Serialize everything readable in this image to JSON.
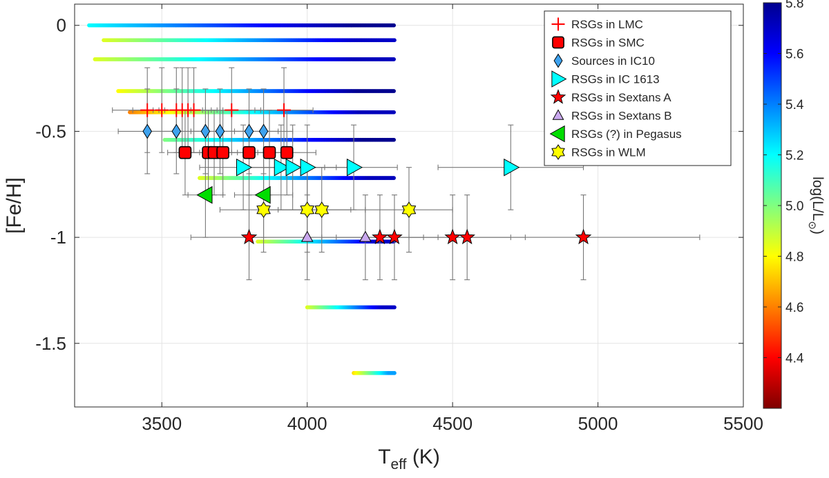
{
  "chart_data": {
    "type": "scatter",
    "xlabel": "T",
    "xlabel_sub": "eff",
    "xlabel_unit": " (K)",
    "ylabel": "[Fe/H]",
    "xlim": [
      3200,
      5500
    ],
    "ylim": [
      -1.8,
      0.1
    ],
    "xticks": [
      3500,
      4000,
      4500,
      5000,
      5500
    ],
    "yticks": [
      0,
      -0.5,
      -1,
      -1.5
    ],
    "ytick_labels": [
      "0",
      "-0.5",
      "-1",
      "-1.5"
    ],
    "grid": true,
    "legend_position": "top-right",
    "colorbar": {
      "label_prefix": "log(L/L",
      "label_sub": "⊙",
      "label_suffix": ")",
      "range": [
        4.2,
        5.8
      ],
      "ticks": [
        "4.4",
        "4.6",
        "4.8",
        "5.0",
        "5.2",
        "5.4",
        "5.6",
        "5.8"
      ],
      "tick_values": [
        4.4,
        4.6,
        4.8,
        5.0,
        5.2,
        5.4,
        5.6,
        5.8
      ],
      "colormap": [
        "#7f0000",
        "#ff0000",
        "#ff8000",
        "#ffff00",
        "#80ff80",
        "#00ffff",
        "#0080ff",
        "#0000ff",
        "#00008f"
      ]
    },
    "tracks": [
      {
        "feh": 0.0,
        "x0": 3250,
        "x1": 4300,
        "lmin": 5.2,
        "lmax": 5.8
      },
      {
        "feh": -0.07,
        "x0": 3300,
        "x1": 4300,
        "lmin": 4.85,
        "lmax": 5.7
      },
      {
        "feh": -0.16,
        "x0": 3270,
        "x1": 4300,
        "lmin": 4.85,
        "lmax": 5.72
      },
      {
        "feh": -0.31,
        "x0": 3350,
        "x1": 4300,
        "lmin": 4.8,
        "lmax": 5.8
      },
      {
        "feh": -0.41,
        "x0": 3390,
        "x1": 4300,
        "lmin": 4.6,
        "lmax": 5.72
      },
      {
        "feh": -0.54,
        "x0": 3510,
        "x1": 4300,
        "lmin": 5.0,
        "lmax": 5.8
      },
      {
        "feh": -0.72,
        "x0": 3630,
        "x1": 4300,
        "lmin": 4.85,
        "lmax": 5.72
      },
      {
        "feh": -1.02,
        "x0": 3830,
        "x1": 4300,
        "lmin": 4.85,
        "lmax": 5.7
      },
      {
        "feh": -1.33,
        "x0": 4000,
        "x1": 4300,
        "lmin": 4.85,
        "lmax": 5.7
      },
      {
        "feh": -1.64,
        "x0": 4160,
        "x1": 4300,
        "lmin": 4.75,
        "lmax": 5.35
      }
    ],
    "series": [
      {
        "name": "RSGs in LMC",
        "marker": "plus",
        "color": "#ff0000",
        "points": [
          {
            "x": 3450,
            "y": -0.4
          },
          {
            "x": 3500,
            "y": -0.4
          },
          {
            "x": 3550,
            "y": -0.4
          },
          {
            "x": 3570,
            "y": -0.4
          },
          {
            "x": 3590,
            "y": -0.4
          },
          {
            "x": 3610,
            "y": -0.4
          },
          {
            "x": 3740,
            "y": -0.4
          },
          {
            "x": 3920,
            "y": -0.4
          }
        ],
        "xerr": [
          120,
          100,
          100,
          100,
          100,
          100,
          100,
          100
        ],
        "yerr": [
          0.2,
          0.2,
          0.2,
          0.2,
          0.2,
          0.2,
          0.2,
          0.2
        ]
      },
      {
        "name": "RSGs in SMC",
        "marker": "square",
        "color": "#ff0000",
        "points": [
          {
            "x": 3580,
            "y": -0.6
          },
          {
            "x": 3660,
            "y": -0.6
          },
          {
            "x": 3680,
            "y": -0.6
          },
          {
            "x": 3710,
            "y": -0.6
          },
          {
            "x": 3800,
            "y": -0.6
          },
          {
            "x": 3870,
            "y": -0.6
          },
          {
            "x": 3930,
            "y": -0.6
          }
        ],
        "xerr": [
          60,
          80,
          80,
          80,
          80,
          80,
          100
        ],
        "yerr": [
          0.2,
          0.2,
          0.2,
          0.2,
          0.2,
          0.2,
          0.2
        ]
      },
      {
        "name": "Sources in IC10",
        "marker": "diamond",
        "color": "#3ea2ee",
        "points": [
          {
            "x": 3450,
            "y": -0.5
          },
          {
            "x": 3550,
            "y": -0.5
          },
          {
            "x": 3650,
            "y": -0.5
          },
          {
            "x": 3700,
            "y": -0.5
          },
          {
            "x": 3800,
            "y": -0.5
          },
          {
            "x": 3850,
            "y": -0.5
          }
        ],
        "xerr": [
          100,
          100,
          100,
          100,
          100,
          100
        ],
        "yerr": [
          0.2,
          0.2,
          0.2,
          0.2,
          0.2,
          0.2
        ]
      },
      {
        "name": "RSGs in IC 1613",
        "marker": "triangle-right",
        "color": "#00ffff",
        "points": [
          {
            "x": 3780,
            "y": -0.67
          },
          {
            "x": 3910,
            "y": -0.67
          },
          {
            "x": 3950,
            "y": -0.67
          },
          {
            "x": 4000,
            "y": -0.67
          },
          {
            "x": 4160,
            "y": -0.67
          },
          {
            "x": 4700,
            "y": -0.67
          }
        ],
        "xerr": [
          150,
          150,
          150,
          150,
          150,
          250
        ],
        "yerr": [
          0.2,
          0.2,
          0.2,
          0.2,
          0.2,
          0.2
        ]
      },
      {
        "name": "RSGs in Sextans A",
        "marker": "star",
        "color": "#ff0000",
        "points": [
          {
            "x": 3800,
            "y": -1.0
          },
          {
            "x": 4250,
            "y": -1.0
          },
          {
            "x": 4300,
            "y": -1.0
          },
          {
            "x": 4500,
            "y": -1.0
          },
          {
            "x": 4550,
            "y": -1.0
          },
          {
            "x": 4950,
            "y": -1.0
          }
        ],
        "xerr": [
          200,
          200,
          200,
          200,
          200,
          400
        ],
        "yerr": [
          0.2,
          0.2,
          0.2,
          0.2,
          0.2,
          0.2
        ]
      },
      {
        "name": "RSGs in Sextans B",
        "marker": "triangle-up",
        "color": "#c9a8ee",
        "points": [
          {
            "x": 4000,
            "y": -1.0
          },
          {
            "x": 4200,
            "y": -1.0
          }
        ],
        "xerr": [
          200,
          200
        ],
        "yerr": [
          0.2,
          0.2
        ]
      },
      {
        "name": "RSGs (?) in Pegasus",
        "marker": "triangle-left",
        "color": "#00dd00",
        "points": [
          {
            "x": 3650,
            "y": -0.8
          },
          {
            "x": 3850,
            "y": -0.8
          }
        ],
        "xerr": [
          60,
          100
        ],
        "yerr": [
          0.2,
          0.2
        ]
      },
      {
        "name": "RSGs in WLM",
        "marker": "hexagram",
        "color": "#ffff00",
        "points": [
          {
            "x": 3850,
            "y": -0.87
          },
          {
            "x": 4000,
            "y": -0.87
          },
          {
            "x": 4050,
            "y": -0.87
          },
          {
            "x": 4350,
            "y": -0.87
          }
        ],
        "xerr": [
          150,
          150,
          150,
          150
        ],
        "yerr": [
          0.2,
          0.2,
          0.2,
          0.2
        ]
      }
    ]
  }
}
